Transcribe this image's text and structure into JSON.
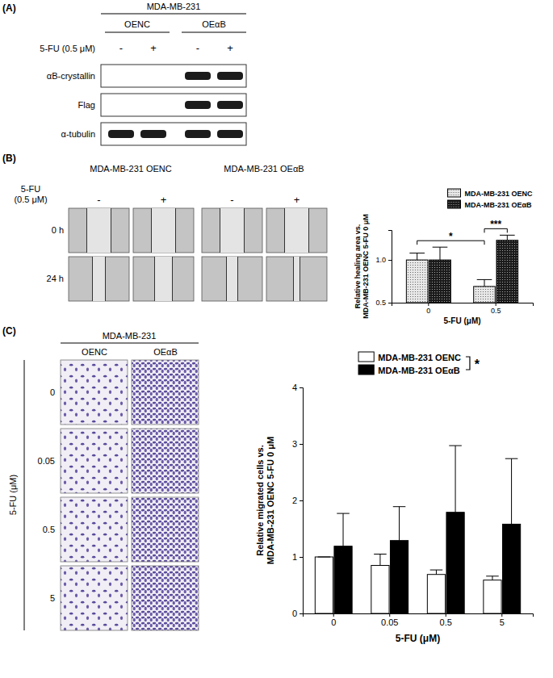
{
  "figure": {
    "panel_labels": [
      "(A)",
      "(B)",
      "(C)"
    ],
    "blot": {
      "cell_line": "MDA-MB-231",
      "groups": [
        "OENC",
        "OEαB"
      ],
      "treatment": "5-FU (0.5 μM)",
      "lanes": [
        "-",
        "+",
        "-",
        "+"
      ],
      "rows": [
        "αB-crystallin",
        "Flag",
        "α-tubulin"
      ],
      "bands": [
        [
          false,
          false,
          true,
          true
        ],
        [
          false,
          false,
          true,
          true
        ],
        [
          true,
          true,
          true,
          true
        ]
      ]
    },
    "wound": {
      "columns": [
        "MDA-MB-231 OENC",
        "MDA-MB-231 OEαB"
      ],
      "treatment": [
        "5-FU",
        "(0.5 μM)"
      ],
      "lanes": [
        "-",
        "+",
        "-",
        "+"
      ],
      "rows": [
        "0 h",
        "24 h"
      ]
    },
    "transwell": {
      "cell_line": "MDA-MB-231",
      "groups": [
        "OENC",
        "OEαB"
      ],
      "axis_label": "5-FU (μM)",
      "rows": [
        "0",
        "0.05",
        "0.5",
        "5"
      ]
    }
  },
  "chart_data": [
    {
      "type": "bar",
      "categories": [
        "0",
        "0.5"
      ],
      "x_label": "5-FU (μM)",
      "y_label": [
        "Relative healing area vs.",
        "MDA-MB-231 OENC 5-FU 0 μM"
      ],
      "ylim": [
        0.5,
        1.35
      ],
      "yticks": [
        0.5,
        {
          "value": 1,
          "label": "1.0"
        }
      ],
      "legend": "top-right",
      "annotations": [
        "*",
        "***"
      ],
      "series": [
        {
          "name": "MDA-MB-231 OENC",
          "color": "#e8e8e8",
          "values": [
            1.0,
            0.69
          ],
          "error": [
            0.08,
            0.08
          ]
        },
        {
          "name": "MDA-MB-231 OEαB",
          "color": "#1a1a1a",
          "values": [
            1.0,
            1.23
          ],
          "error": [
            0.15,
            0.06
          ]
        }
      ]
    },
    {
      "type": "bar",
      "categories": [
        "0",
        "0.05",
        "0.5",
        "5"
      ],
      "x_label": "5-FU (μM)",
      "y_label": [
        "Relative migrated cells vs.",
        "MDA-MB-231 OENC 5-FU 0 μM"
      ],
      "ylim": [
        0,
        4
      ],
      "yticks": [
        0,
        1,
        2,
        3,
        4
      ],
      "legend": "top",
      "annotations": [
        "*"
      ],
      "series": [
        {
          "name": "MDA-MB-231 OENC",
          "color": "#ffffff",
          "values": [
            1.0,
            0.85,
            0.69,
            0.59
          ],
          "error": [
            0,
            0.2,
            0.08,
            0.07
          ]
        },
        {
          "name": "MDA-MB-231 OEαB",
          "color": "#000000",
          "values": [
            1.19,
            1.29,
            1.79,
            1.58
          ],
          "error": [
            0.58,
            0.6,
            1.18,
            1.16
          ]
        }
      ]
    }
  ]
}
